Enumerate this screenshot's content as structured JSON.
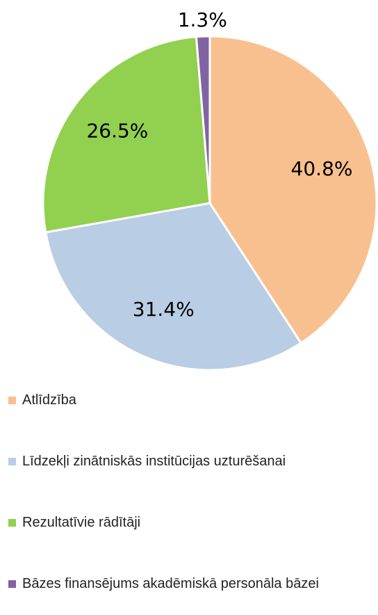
{
  "chart_data": {
    "type": "pie",
    "categories": [
      "Atlīdzība",
      "Līdzekļi zinātniskās institūcijas uzturēšanai",
      "Rezultatīvie rādītāji",
      "Bāzes finansējums akadēmiskā personāla bāzei"
    ],
    "values": [
      40.8,
      31.4,
      26.5,
      1.3
    ],
    "value_labels": [
      "40.8%",
      "31.4%",
      "26.5%",
      "1.3%"
    ],
    "colors": [
      "#f9c08f",
      "#b9cde5",
      "#92d050",
      "#8064a2"
    ],
    "legend": "bottom"
  }
}
